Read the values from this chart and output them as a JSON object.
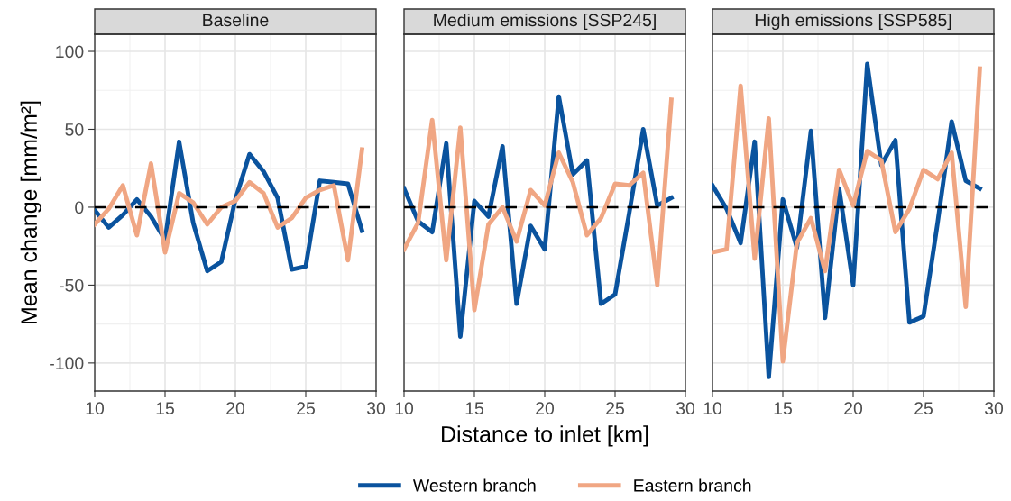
{
  "chart_data": [
    {
      "type": "line",
      "title": "Baseline",
      "ylabel": "Mean change [mm/m²]",
      "x": [
        10,
        11,
        12,
        13,
        14,
        15,
        16,
        17,
        18,
        19,
        20,
        21,
        22,
        23,
        24,
        25,
        26,
        27,
        28,
        29
      ],
      "series": [
        {
          "name": "Western branch",
          "color": "#0a539e",
          "values": [
            -2,
            -13,
            -5,
            5,
            -6,
            -21,
            42,
            -10,
            -41,
            -35,
            5,
            34,
            23,
            6,
            -40,
            -38,
            17,
            16,
            15,
            -15
          ]
        },
        {
          "name": "Eastern branch",
          "color": "#f0a683",
          "values": [
            -11,
            -1,
            14,
            -18,
            28,
            -29,
            9,
            3,
            -11,
            0,
            4,
            16,
            9,
            -13,
            -7,
            6,
            11,
            14,
            -34,
            37
          ]
        }
      ],
      "xlim": [
        10,
        30
      ],
      "xticks": [
        10,
        15,
        20,
        25,
        30
      ],
      "ylim": [
        -118,
        111
      ],
      "yticks": [
        -100,
        -50,
        0,
        50,
        100
      ],
      "ref_lines": [
        {
          "axis": "y",
          "value": 0,
          "color": "#000000",
          "line_style": "dashed"
        }
      ],
      "grid": true,
      "legend": "bottom"
    },
    {
      "type": "line",
      "title": "Medium emissions [SSP245]",
      "xlabel": "Distance to inlet [km]",
      "x": [
        10,
        11,
        12,
        13,
        14,
        15,
        16,
        17,
        18,
        19,
        20,
        21,
        22,
        23,
        24,
        25,
        26,
        27,
        28,
        29
      ],
      "series": [
        {
          "color": "#0a539e",
          "values": [
            12,
            -9,
            -16,
            41,
            -83,
            4,
            -6,
            39,
            -62,
            -12,
            -27,
            71,
            21,
            30,
            -62,
            -56,
            -4,
            50,
            1,
            6
          ]
        },
        {
          "color": "#f0a683",
          "values": [
            -27,
            -10,
            56,
            -34,
            51,
            -66,
            -11,
            0,
            -22,
            11,
            1,
            35,
            16,
            -18,
            -7,
            15,
            14,
            22,
            -50,
            69
          ]
        }
      ],
      "xlim": [
        10,
        30
      ],
      "xticks": [
        10,
        15,
        20,
        25,
        30
      ],
      "ylim": [
        -118,
        111
      ],
      "yticks": [
        -100,
        -50,
        0,
        50,
        100
      ],
      "tick_labels": "x",
      "ref_lines": [
        {
          "axis": "y",
          "value": 0,
          "color": "#000000",
          "line_style": "dashed"
        }
      ],
      "grid": true
    },
    {
      "type": "line",
      "title": "High emissions [SSP585]",
      "x": [
        10,
        11,
        12,
        13,
        14,
        15,
        16,
        17,
        18,
        19,
        20,
        21,
        22,
        23,
        24,
        25,
        26,
        27,
        28,
        29
      ],
      "series": [
        {
          "color": "#0a539e",
          "values": [
            14,
            -1,
            -23,
            42,
            -109,
            5,
            -26,
            49,
            -71,
            12,
            -50,
            92,
            27,
            43,
            -74,
            -70,
            -10,
            55,
            17,
            12
          ]
        },
        {
          "color": "#f0a683",
          "values": [
            -29,
            -27,
            78,
            -33,
            57,
            -99,
            -23,
            -7,
            -41,
            24,
            1,
            36,
            30,
            -16,
            -1,
            24,
            18,
            35,
            -64,
            89
          ]
        }
      ],
      "xlim": [
        10,
        30
      ],
      "xticks": [
        10,
        15,
        20,
        25,
        30
      ],
      "ylim": [
        -118,
        111
      ],
      "yticks": [
        -100,
        -50,
        0,
        50,
        100
      ],
      "tick_labels": "x",
      "ref_lines": [
        {
          "axis": "y",
          "value": 0,
          "color": "#000000",
          "line_style": "dashed"
        }
      ],
      "grid": true
    }
  ]
}
